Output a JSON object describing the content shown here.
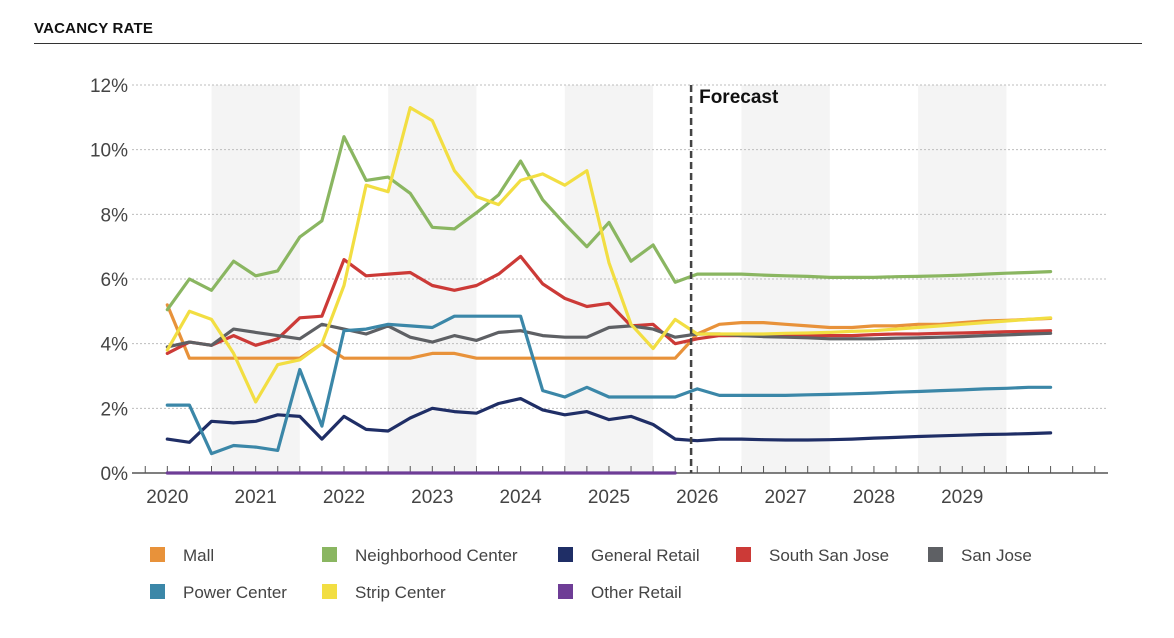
{
  "header": {
    "title": "VACANCY RATE"
  },
  "chart_data": {
    "type": "line",
    "title": "VACANCY RATE",
    "x_unit": "year",
    "y_format": "percent",
    "xlim": [
      2019.6,
      2030.65
    ],
    "ylim": [
      0,
      12
    ],
    "yticks": [
      0,
      2,
      4,
      6,
      8,
      10,
      12
    ],
    "ytick_labels": [
      "0%",
      "2%",
      "4%",
      "6%",
      "8%",
      "10%",
      "12%"
    ],
    "xtick_labels": [
      "2020",
      "2021",
      "2022",
      "2023",
      "2024",
      "2025",
      "2026",
      "2027",
      "2028",
      "2029"
    ],
    "grid": true,
    "legend_position": "bottom",
    "forecast": {
      "label": "Forecast",
      "x": 2025.93
    },
    "x": [
      2020.0,
      2020.25,
      2020.5,
      2020.75,
      2021.0,
      2021.25,
      2021.5,
      2021.75,
      2022.0,
      2022.25,
      2022.5,
      2022.75,
      2023.0,
      2023.25,
      2023.5,
      2023.75,
      2024.0,
      2024.25,
      2024.5,
      2024.75,
      2025.0,
      2025.25,
      2025.5,
      2025.75,
      2026.0,
      2026.25,
      2026.5,
      2026.75,
      2027.0,
      2027.25,
      2027.5,
      2027.75,
      2028.0,
      2028.25,
      2028.5,
      2028.75,
      2029.0,
      2029.25,
      2029.5,
      2029.75,
      2030.0
    ],
    "series": [
      {
        "name": "Mall",
        "color": "#E8923A",
        "values": [
          5.2,
          3.55,
          3.55,
          3.55,
          3.55,
          3.55,
          3.55,
          4.0,
          3.55,
          3.55,
          3.55,
          3.55,
          3.7,
          3.7,
          3.55,
          3.55,
          3.55,
          3.55,
          3.55,
          3.55,
          3.55,
          3.55,
          3.55,
          3.55,
          4.3,
          4.6,
          4.65,
          4.65,
          4.6,
          4.55,
          4.5,
          4.5,
          4.55,
          4.55,
          4.6,
          4.6,
          4.65,
          4.7,
          4.72,
          4.75,
          4.78
        ]
      },
      {
        "name": "Neighborhood Center",
        "color": "#8AB661",
        "values": [
          5.05,
          6.0,
          5.65,
          6.55,
          6.1,
          6.25,
          7.3,
          7.8,
          10.4,
          9.05,
          9.15,
          8.65,
          7.6,
          7.55,
          8.05,
          8.6,
          9.65,
          8.45,
          7.7,
          7.0,
          7.75,
          6.55,
          7.05,
          5.9,
          6.15,
          6.15,
          6.15,
          6.12,
          6.1,
          6.08,
          6.05,
          6.05,
          6.05,
          6.07,
          6.08,
          6.1,
          6.12,
          6.15,
          6.18,
          6.2,
          6.23
        ]
      },
      {
        "name": "General Retail",
        "color": "#1F2E66",
        "values": [
          1.05,
          0.95,
          1.6,
          1.55,
          1.6,
          1.8,
          1.75,
          1.05,
          1.75,
          1.35,
          1.3,
          1.7,
          2.0,
          1.9,
          1.85,
          2.15,
          2.3,
          1.95,
          1.8,
          1.9,
          1.65,
          1.75,
          1.5,
          1.05,
          1.0,
          1.05,
          1.05,
          1.03,
          1.02,
          1.02,
          1.03,
          1.05,
          1.08,
          1.1,
          1.13,
          1.15,
          1.17,
          1.19,
          1.2,
          1.22,
          1.24
        ]
      },
      {
        "name": "South San Jose",
        "color": "#CC3A37",
        "values": [
          3.7,
          4.05,
          3.95,
          4.25,
          3.95,
          4.15,
          4.8,
          4.85,
          6.6,
          6.1,
          6.15,
          6.2,
          5.8,
          5.65,
          5.8,
          6.15,
          6.7,
          5.85,
          5.4,
          5.15,
          5.25,
          4.55,
          4.6,
          4.0,
          4.15,
          4.25,
          4.25,
          4.25,
          4.25,
          4.25,
          4.25,
          4.25,
          4.28,
          4.3,
          4.3,
          4.32,
          4.33,
          4.35,
          4.37,
          4.38,
          4.4
        ]
      },
      {
        "name": "San Jose",
        "color": "#5E6064",
        "values": [
          3.9,
          4.05,
          3.95,
          4.45,
          4.35,
          4.25,
          4.15,
          4.6,
          4.45,
          4.3,
          4.55,
          4.2,
          4.05,
          4.25,
          4.1,
          4.35,
          4.4,
          4.25,
          4.2,
          4.2,
          4.5,
          4.55,
          4.45,
          4.2,
          4.3,
          4.3,
          4.25,
          4.22,
          4.2,
          4.18,
          4.15,
          4.15,
          4.15,
          4.17,
          4.18,
          4.2,
          4.22,
          4.25,
          4.27,
          4.3,
          4.32
        ]
      },
      {
        "name": "Power Center",
        "color": "#3B87A8",
        "values": [
          2.1,
          2.1,
          0.6,
          0.85,
          0.8,
          0.7,
          3.2,
          1.45,
          4.4,
          4.45,
          4.6,
          4.55,
          4.5,
          4.85,
          4.85,
          4.85,
          4.85,
          2.55,
          2.35,
          2.65,
          2.35,
          2.35,
          2.35,
          2.35,
          2.6,
          2.4,
          2.4,
          2.4,
          2.4,
          2.42,
          2.43,
          2.45,
          2.47,
          2.5,
          2.52,
          2.55,
          2.57,
          2.6,
          2.62,
          2.65,
          2.65
        ]
      },
      {
        "name": "Strip Center",
        "color": "#F2DE42",
        "values": [
          3.8,
          5.0,
          4.75,
          3.7,
          2.2,
          3.35,
          3.5,
          4.0,
          5.8,
          8.9,
          8.7,
          11.3,
          10.9,
          9.35,
          8.55,
          8.3,
          9.05,
          9.25,
          8.9,
          9.35,
          6.5,
          4.6,
          3.85,
          4.75,
          4.3,
          4.3,
          4.3,
          4.3,
          4.32,
          4.33,
          4.35,
          4.38,
          4.4,
          4.45,
          4.5,
          4.55,
          4.6,
          4.65,
          4.7,
          4.75,
          4.8
        ]
      },
      {
        "name": "Other Retail",
        "color": "#6E3D96",
        "values": [
          0.0,
          0.0,
          0.0,
          0.0,
          0.0,
          0.0,
          0.0,
          0.0,
          0.0,
          0.0,
          0.0,
          0.0,
          0.0,
          0.0,
          0.0,
          0.0,
          0.0,
          0.0,
          0.0,
          0.0,
          0.0,
          0.0,
          0.0,
          0.0,
          null,
          null,
          null,
          null,
          null,
          null,
          null,
          null,
          null,
          null,
          null,
          null,
          null,
          null,
          null,
          null,
          null
        ]
      }
    ]
  }
}
